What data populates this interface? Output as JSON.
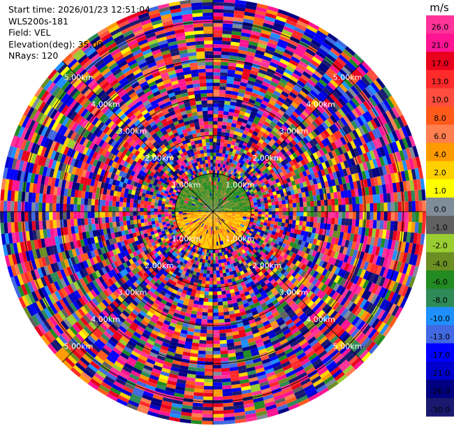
{
  "info": {
    "start_time": "Start time: 2026/01/23 12:51:04",
    "station": "WLS200s-181",
    "field": "Field: VEL",
    "elevation": "Elevation(deg): 35.00",
    "nrays": "NRays: 120"
  },
  "chart_data": {
    "type": "ppi-polar-heatmap",
    "field": "VEL",
    "unit_label": "m/s",
    "rays": 120,
    "range_rings": [
      {
        "range_km": 1,
        "label": "1.00km"
      },
      {
        "range_km": 2,
        "label": "2.00km"
      },
      {
        "range_km": 3,
        "label": "3.00km"
      },
      {
        "range_km": 4,
        "label": "4.00km"
      },
      {
        "range_km": 5,
        "label": "5.00km"
      }
    ],
    "max_range_km": 5.6,
    "inner_zone": {
      "range_km": 1.0,
      "north_half": {
        "dominant_range": [
          -6.0,
          -2.0
        ]
      },
      "south_half": {
        "dominant_range": [
          2.0,
          6.0
        ]
      }
    },
    "colorbar": {
      "ticks": [
        "26.0",
        "21.0",
        "17.0",
        "13.0",
        "10.0",
        "8.0",
        "6.0",
        "4.0",
        "2.0",
        "1.0",
        "0.0",
        "-1.0",
        "-2.0",
        "-4.0",
        "-6.0",
        "-8.0",
        "-10.0",
        "-13.0",
        "-17.0",
        "-21.0",
        "-26.0",
        "-30.0"
      ],
      "values": [
        26,
        21,
        17,
        13,
        10,
        8,
        6,
        4,
        2,
        1,
        0,
        -1,
        -2,
        -4,
        -6,
        -8,
        -10,
        -13,
        -17,
        -21,
        -26,
        -30
      ],
      "colors": [
        "#ff3399",
        "#ff1493",
        "#e8001c",
        "#ff2a2a",
        "#ff4d3d",
        "#ff5a1a",
        "#ff7f50",
        "#ff9a00",
        "#ffd000",
        "#ffff00",
        "#7f8c99",
        "#606060",
        "#9acd32",
        "#6b8e23",
        "#228b22",
        "#2e8b57",
        "#1e90ff",
        "#4169e1",
        "#0000ff",
        "#0000cd",
        "#000080",
        "#191970"
      ]
    }
  }
}
